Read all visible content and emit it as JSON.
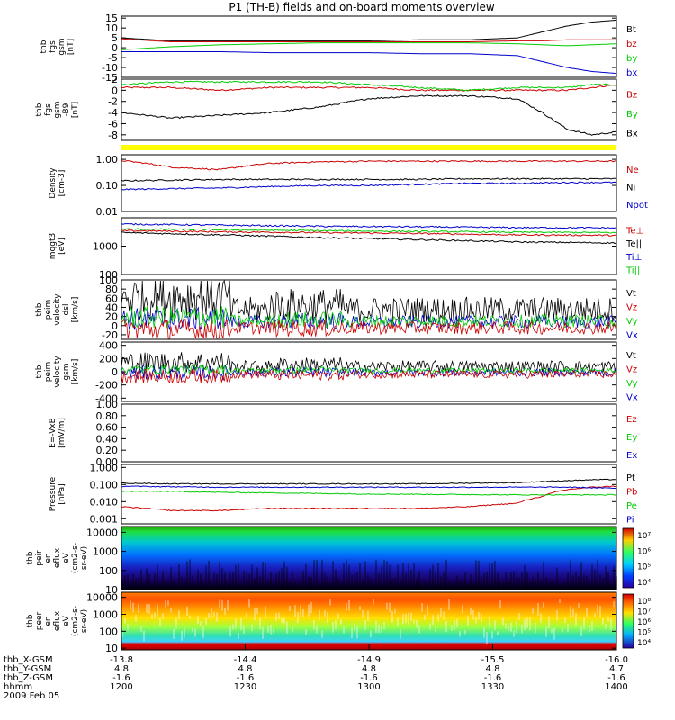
{
  "title": "P1 (TH-B) fields and on-board moments overview",
  "date_label": "2009 Feb 05",
  "colors": {
    "black": "#000000",
    "red": "#cc0000",
    "green": "#00cc00",
    "blue": "#0000cc",
    "yellow": "#ffff00"
  },
  "chart_data": [
    {
      "type": "line",
      "id": "fgs",
      "ylabel": [
        "thb",
        "fgs",
        "gsm",
        "[nT]"
      ],
      "ylim": [
        -15,
        16
      ],
      "yticks": [
        "15",
        "10",
        "5",
        "0",
        "-5",
        "-10",
        "-15"
      ],
      "yticks_v": [
        15,
        10,
        5,
        0,
        -5,
        -10,
        -15
      ],
      "x": [
        0,
        0.1,
        0.2,
        0.3,
        0.4,
        0.5,
        0.6,
        0.7,
        0.8,
        0.85,
        0.9,
        0.95,
        1.0
      ],
      "series": [
        {
          "name": "Bt",
          "color": "black",
          "values": [
            5,
            3.5,
            3.5,
            3.5,
            3.5,
            3.5,
            4,
            4,
            5,
            8,
            11,
            13,
            14
          ]
        },
        {
          "name": "bz",
          "color": "red",
          "values": [
            4.5,
            3,
            3,
            3,
            3,
            3,
            3,
            3,
            3.5,
            3.5,
            4,
            4,
            4
          ]
        },
        {
          "name": "by",
          "color": "green",
          "values": [
            -1,
            0.5,
            1.5,
            2,
            2.5,
            2.5,
            2.5,
            2.5,
            2,
            1.5,
            1,
            1.5,
            2
          ]
        },
        {
          "name": "bx",
          "color": "blue",
          "values": [
            -2,
            -2,
            -2,
            -2.5,
            -2.5,
            -2.5,
            -3,
            -3,
            -4,
            -7,
            -10,
            -12,
            -13
          ]
        }
      ]
    },
    {
      "type": "line",
      "id": "fgs-gse",
      "ylabel": [
        "thb",
        "fgs",
        "gsm",
        "-B9",
        "[nT]"
      ],
      "ylim": [
        -9,
        2
      ],
      "yticks": [
        "2",
        "0",
        "-2",
        "-4",
        "-6",
        "-8"
      ],
      "yticks_v": [
        2,
        0,
        -2,
        -4,
        -6,
        -8
      ],
      "x": [
        0,
        0.1,
        0.2,
        0.3,
        0.4,
        0.5,
        0.6,
        0.7,
        0.8,
        0.85,
        0.9,
        0.95,
        1.0
      ],
      "series": [
        {
          "name": "Bz",
          "color": "red",
          "values": [
            0.5,
            0.5,
            0,
            0.5,
            0.5,
            0.5,
            0,
            0,
            0,
            0,
            0,
            0.5,
            1
          ]
        },
        {
          "name": "By",
          "color": "green",
          "values": [
            1,
            1.5,
            1.5,
            1.5,
            1.5,
            1,
            0.5,
            0,
            0.5,
            0.5,
            0.5,
            1,
            1
          ]
        },
        {
          "name": "Bx",
          "color": "black",
          "values": [
            -4,
            -5,
            -4.5,
            -4,
            -3,
            -1.5,
            -1,
            -1,
            -1.5,
            -4,
            -7,
            -8,
            -7.5
          ]
        }
      ]
    },
    {
      "type": "line",
      "id": "density",
      "ylabel": [
        "Density",
        "[cm-3]"
      ],
      "ylim": [
        0.01,
        1.5
      ],
      "scale": "log",
      "yticks": [
        "1.00",
        "0.10",
        "0.01"
      ],
      "yticks_v": [
        1,
        0.1,
        0.01
      ],
      "x": [
        0,
        0.1,
        0.2,
        0.3,
        0.4,
        0.5,
        0.6,
        0.7,
        0.8,
        0.9,
        1.0
      ],
      "series": [
        {
          "name": "Ne",
          "color": "red",
          "values": [
            0.9,
            0.5,
            0.4,
            0.7,
            0.8,
            0.85,
            0.85,
            0.85,
            0.85,
            0.85,
            0.85
          ]
        },
        {
          "name": "Ni",
          "color": "black",
          "values": [
            0.15,
            0.16,
            0.17,
            0.17,
            0.17,
            0.17,
            0.17,
            0.18,
            0.18,
            0.18,
            0.18
          ]
        },
        {
          "name": "Npot",
          "color": "blue",
          "values": [
            0.07,
            0.075,
            0.08,
            0.09,
            0.1,
            0.1,
            0.11,
            0.12,
            0.12,
            0.13,
            0.13
          ]
        }
      ]
    },
    {
      "type": "line",
      "id": "temp",
      "ylabel": [
        "mqgt3",
        "[eV]"
      ],
      "ylim": [
        100,
        10000
      ],
      "scale": "log",
      "yticks": [
        "1000",
        "100"
      ],
      "yticks_v": [
        1000,
        100
      ],
      "x": [
        0,
        0.2,
        0.4,
        0.6,
        0.8,
        1.0
      ],
      "series": [
        {
          "name": "Te⊥",
          "color": "red",
          "values": [
            3500,
            3200,
            3000,
            2800,
            2500,
            2400
          ]
        },
        {
          "name": "Te||",
          "color": "black",
          "values": [
            3000,
            2500,
            2000,
            1700,
            1400,
            1300
          ]
        },
        {
          "name": "Ti⊥",
          "color": "blue",
          "values": [
            6000,
            5500,
            5000,
            4800,
            4500,
            4400
          ]
        },
        {
          "name": "Ti||",
          "color": "green",
          "values": [
            4000,
            3800,
            3500,
            3300,
            3100,
            3000
          ]
        }
      ]
    },
    {
      "type": "line",
      "id": "velocity-dsl",
      "ylabel": [
        "thb",
        "peim",
        "velocity",
        "dsl",
        "[km/s]"
      ],
      "ylim": [
        -30,
        100
      ],
      "yticks": [
        "100",
        "80",
        "60",
        "40",
        "20",
        "0",
        "-20"
      ],
      "yticks_v": [
        100,
        80,
        60,
        40,
        20,
        0,
        -20
      ],
      "series": [
        {
          "name": "Vt",
          "color": "black"
        },
        {
          "name": "Vz",
          "color": "red"
        },
        {
          "name": "Vy",
          "color": "green"
        },
        {
          "name": "Vx",
          "color": "blue"
        }
      ]
    },
    {
      "type": "line",
      "id": "velocity-gsm",
      "ylabel": [
        "thb",
        "peim",
        "velocity",
        "gsm",
        "[km/s]"
      ],
      "ylim": [
        -450,
        450
      ],
      "yticks": [
        "400",
        "200",
        "0",
        "-200",
        "-400"
      ],
      "yticks_v": [
        400,
        200,
        0,
        -200,
        -400
      ],
      "series": [
        {
          "name": "Vt",
          "color": "black"
        },
        {
          "name": "Vz",
          "color": "red"
        },
        {
          "name": "Vy",
          "color": "green"
        },
        {
          "name": "Vx",
          "color": "blue"
        }
      ]
    },
    {
      "type": "line",
      "id": "efield",
      "ylabel": [
        "E=-VxB",
        "[mV/m]"
      ],
      "ylim": [
        0,
        1
      ],
      "yticks": [
        "1.00",
        "0.80",
        "0.60",
        "0.40",
        "0.20",
        "0.00"
      ],
      "yticks_v": [
        1,
        0.8,
        0.6,
        0.4,
        0.2,
        0
      ],
      "series": [
        {
          "name": "Ez",
          "color": "red"
        },
        {
          "name": "Ey",
          "color": "green"
        },
        {
          "name": "Ex",
          "color": "blue"
        }
      ]
    },
    {
      "type": "line",
      "id": "pressure",
      "ylabel": [
        "Pressure",
        "[nPa]"
      ],
      "ylim": [
        0.0005,
        1.5
      ],
      "scale": "log",
      "yticks": [
        "1.000",
        "0.100",
        "0.010",
        "0.001"
      ],
      "yticks_v": [
        1,
        0.1,
        0.01,
        0.001
      ],
      "x": [
        0,
        0.1,
        0.2,
        0.3,
        0.4,
        0.5,
        0.6,
        0.7,
        0.8,
        0.85,
        0.9,
        0.95,
        1.0
      ],
      "series": [
        {
          "name": "Pt",
          "color": "black",
          "values": [
            0.12,
            0.11,
            0.11,
            0.11,
            0.11,
            0.11,
            0.11,
            0.12,
            0.13,
            0.15,
            0.17,
            0.19,
            0.2
          ]
        },
        {
          "name": "Pb",
          "color": "red",
          "values": [
            0.005,
            0.003,
            0.003,
            0.004,
            0.004,
            0.004,
            0.004,
            0.005,
            0.008,
            0.02,
            0.05,
            0.07,
            0.08
          ]
        },
        {
          "name": "Pe",
          "color": "green",
          "values": [
            0.04,
            0.04,
            0.035,
            0.033,
            0.03,
            0.028,
            0.027,
            0.026,
            0.025,
            0.025,
            0.025,
            0.025,
            0.025
          ]
        },
        {
          "name": "Pi",
          "color": "blue",
          "values": [
            0.08,
            0.075,
            0.07,
            0.07,
            0.07,
            0.07,
            0.07,
            0.07,
            0.07,
            0.07,
            0.07,
            0.065,
            0.06
          ]
        }
      ]
    },
    {
      "type": "heatmap",
      "id": "peir",
      "ylabel": [
        "thb",
        "peir",
        "en",
        "eflux",
        "eV",
        "(cm2-s-",
        "sr-eV)"
      ],
      "ylim": [
        10,
        20000
      ],
      "scale": "log",
      "yticks": [
        "10000",
        "1000",
        "100",
        "10"
      ],
      "yticks_v": [
        10000,
        1000,
        100,
        10
      ],
      "colorbar": {
        "labels": [
          "10⁷",
          "10⁶",
          "10⁵",
          "10⁴"
        ]
      }
    },
    {
      "type": "heatmap",
      "id": "peer",
      "ylabel": [
        "thb",
        "peer",
        "en",
        "eflux",
        "eV",
        "(cm2-s-",
        "sr-eV)"
      ],
      "ylim": [
        8,
        20000
      ],
      "scale": "log",
      "yticks": [
        "10000",
        "1000",
        "100",
        "10"
      ],
      "yticks_v": [
        10000,
        1000,
        100,
        10
      ],
      "colorbar": {
        "labels": [
          "10⁸",
          "10⁷",
          "10⁶",
          "10⁵",
          "10⁴"
        ]
      }
    }
  ],
  "x_axis": {
    "row_labels": [
      "thb_X-GSM",
      "thb_Y-GSM",
      "thb_Z-GSM",
      "hhmm"
    ],
    "columns": [
      [
        "-13.8",
        "4.8",
        "-1.6",
        "1200"
      ],
      [
        "-14.4",
        "4.8",
        "-1.6",
        "1230"
      ],
      [
        "-14.9",
        "4.8",
        "-1.6",
        "1300"
      ],
      [
        "-15.5",
        "4.8",
        "-1.6",
        "1330"
      ],
      [
        "-16.0",
        "4.7",
        "-1.6",
        "1400"
      ]
    ]
  }
}
